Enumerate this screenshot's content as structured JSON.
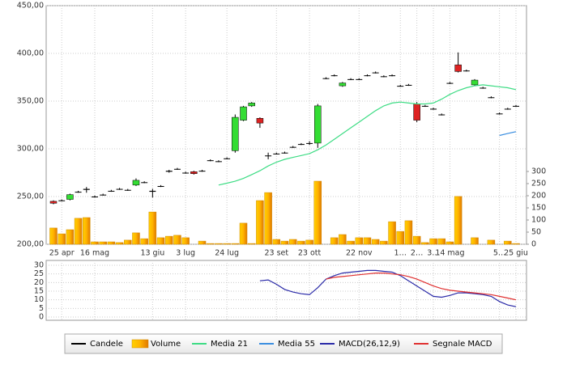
{
  "chart_data": [
    {
      "type": "candlestick",
      "categories": [
        null,
        "25 apr",
        null,
        null,
        null,
        "16 mag",
        null,
        null,
        null,
        null,
        null,
        null,
        "13 giu",
        null,
        null,
        null,
        "3 lug",
        null,
        null,
        null,
        null,
        "24 lug",
        null,
        null,
        null,
        null,
        null,
        "23 set",
        null,
        null,
        null,
        "23 ott",
        null,
        null,
        null,
        null,
        null,
        "22 nov",
        null,
        null,
        null,
        null,
        "1…",
        null,
        "2…",
        null,
        "3…",
        null,
        "14 mag",
        null,
        null,
        null,
        null,
        null,
        "5…",
        null,
        "25 giu"
      ],
      "series": [
        {
          "name": "Candele",
          "color": "#000000",
          "open": [
            245,
            246,
            247,
            255,
            257,
            250,
            252,
            256,
            258,
            257,
            262,
            265,
            256,
            261,
            277,
            279,
            275,
            276,
            277,
            288,
            287,
            290,
            298,
            330,
            345,
            332,
            293,
            295,
            296,
            302,
            305,
            306,
            306,
            374,
            377,
            366,
            373,
            373,
            377,
            380,
            376,
            377,
            366,
            367,
            347,
            345,
            342,
            336,
            369,
            388,
            382,
            367,
            364,
            354,
            337,
            342,
            345
          ],
          "high": [
            246,
            247,
            253,
            256,
            260,
            251,
            253,
            257,
            259,
            258,
            269,
            266,
            258,
            262,
            278,
            280,
            276,
            277,
            278,
            289,
            288,
            291,
            336,
            345,
            349,
            333,
            296,
            296,
            297,
            303,
            306,
            308,
            347,
            375,
            378,
            370,
            374,
            374,
            378,
            381,
            377,
            378,
            367,
            368,
            349,
            346,
            343,
            337,
            370,
            401,
            383,
            373,
            365,
            355,
            338,
            343,
            346
          ],
          "low": [
            242,
            245,
            246,
            254,
            254,
            249,
            251,
            255,
            257,
            256,
            261,
            264,
            249,
            260,
            275,
            278,
            274,
            273,
            276,
            287,
            286,
            289,
            296,
            329,
            344,
            322,
            289,
            294,
            295,
            301,
            304,
            304,
            301,
            373,
            376,
            365,
            372,
            372,
            376,
            379,
            375,
            376,
            365,
            366,
            328,
            344,
            341,
            335,
            368,
            380,
            381,
            366,
            363,
            353,
            336,
            341,
            344
          ],
          "close": [
            243,
            246,
            252,
            255,
            258,
            250,
            252,
            256,
            258,
            257,
            267,
            265,
            255,
            261,
            276,
            279,
            275,
            274,
            277,
            288,
            287,
            290,
            333,
            344,
            348,
            327,
            293,
            295,
            296,
            302,
            305,
            306,
            345,
            374,
            377,
            369,
            373,
            373,
            377,
            380,
            376,
            377,
            366,
            367,
            330,
            345,
            342,
            336,
            369,
            381,
            382,
            372,
            364,
            354,
            337,
            342,
            345
          ]
        },
        {
          "name": "Volume",
          "color": "#f5a300",
          "type": "bar",
          "axis": "y2",
          "values": [
            67,
            43,
            60,
            107,
            110,
            10,
            10,
            10,
            7,
            17,
            47,
            23,
            133,
            27,
            33,
            37,
            27,
            0,
            13,
            3,
            3,
            3,
            3,
            87,
            3,
            180,
            213,
            20,
            13,
            20,
            13,
            17,
            260,
            0,
            27,
            40,
            13,
            27,
            27,
            20,
            13,
            93,
            53,
            97,
            33,
            7,
            23,
            23,
            10,
            197,
            0,
            27,
            0,
            17,
            0,
            13,
            3
          ]
        },
        {
          "name": "Media 21",
          "color": "#3ddc84",
          "type": "line",
          "values": [
            null,
            null,
            null,
            null,
            null,
            null,
            null,
            null,
            null,
            null,
            null,
            null,
            null,
            null,
            null,
            null,
            null,
            null,
            null,
            null,
            262,
            264,
            266,
            269,
            273,
            277,
            282,
            286,
            289,
            291,
            293,
            295,
            299,
            304,
            310,
            316,
            322,
            328,
            334,
            340,
            345,
            348,
            349,
            348,
            347,
            347,
            348,
            352,
            357,
            361,
            364,
            366,
            367,
            366,
            365,
            364,
            362
          ]
        },
        {
          "name": "Media 55",
          "color": "#3a8ee0",
          "type": "line",
          "values": [
            null,
            null,
            null,
            null,
            null,
            null,
            null,
            null,
            null,
            null,
            null,
            null,
            null,
            null,
            null,
            null,
            null,
            null,
            null,
            null,
            null,
            null,
            null,
            null,
            null,
            null,
            null,
            null,
            null,
            null,
            null,
            null,
            null,
            null,
            null,
            null,
            null,
            null,
            null,
            null,
            null,
            null,
            null,
            null,
            null,
            null,
            null,
            null,
            null,
            null,
            null,
            null,
            null,
            null,
            314,
            316,
            318
          ]
        }
      ],
      "up_color": "#33dd33",
      "down_color": "#dd2222",
      "ylim": [
        200,
        450
      ],
      "yticks": [
        {
          "value": 200,
          "label": "200,00"
        },
        {
          "value": 250,
          "label": "250,00"
        },
        {
          "value": 300,
          "label": "300,00"
        },
        {
          "value": 350,
          "label": "350,00"
        },
        {
          "value": 400,
          "label": "400,00"
        },
        {
          "value": 450,
          "label": "450,00"
        }
      ],
      "y2lim": [
        0,
        300
      ],
      "y2ticks": [
        0,
        50,
        100,
        150,
        200,
        250,
        300
      ],
      "grid": true
    },
    {
      "type": "line",
      "series": [
        {
          "name": "MACD(26,12,9)",
          "color": "#2a2aa8",
          "values": [
            null,
            null,
            null,
            null,
            null,
            null,
            null,
            null,
            null,
            null,
            null,
            null,
            null,
            null,
            null,
            null,
            null,
            null,
            null,
            null,
            null,
            null,
            null,
            null,
            null,
            21,
            21.5,
            19,
            16,
            14.5,
            13.5,
            13,
            17,
            22,
            24,
            25.5,
            26,
            26.5,
            27,
            27,
            26.5,
            26,
            24,
            21,
            18,
            15,
            12,
            11.5,
            12.5,
            14,
            14,
            13.5,
            13,
            12,
            9,
            7,
            6
          ]
        },
        {
          "name": "Segnale MACD",
          "color": "#e03030",
          "values": [
            null,
            null,
            null,
            null,
            null,
            null,
            null,
            null,
            null,
            null,
            null,
            null,
            null,
            null,
            null,
            null,
            null,
            null,
            null,
            null,
            null,
            null,
            null,
            null,
            null,
            null,
            null,
            null,
            null,
            null,
            null,
            null,
            null,
            22,
            23,
            23.5,
            24,
            24.5,
            25,
            25.5,
            25.5,
            25,
            24.5,
            23.5,
            22,
            20,
            18,
            16.5,
            15.5,
            15,
            14.5,
            14,
            13.5,
            13,
            12,
            11,
            10
          ]
        }
      ],
      "ylim": [
        0,
        30
      ],
      "yticks": [
        0,
        5,
        10,
        15,
        20,
        25,
        30
      ],
      "grid": true
    }
  ]
}
